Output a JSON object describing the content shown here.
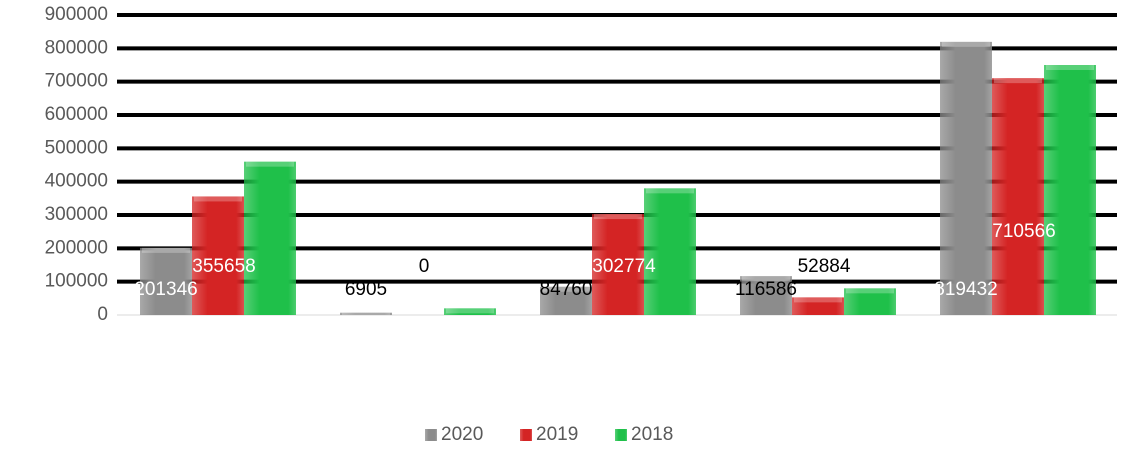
{
  "chart_data": {
    "type": "bar",
    "categories": [
      null,
      null,
      null,
      null,
      null
    ],
    "series": [
      {
        "name": "2020",
        "color": "#8c8c8c",
        "values": [
          201346,
          6905,
          84760,
          116586,
          819432
        ],
        "data_labels": true
      },
      {
        "name": "2019",
        "color": "#d42424",
        "values": [
          355658,
          0,
          302774,
          52884,
          710566
        ],
        "data_labels": true
      },
      {
        "name": "2018",
        "color": "#1fc04a",
        "values": [
          460000,
          20000,
          380000,
          80000,
          750000
        ],
        "data_labels": false
      }
    ],
    "ylim": [
      0,
      900000
    ],
    "yticks": [
      0,
      100000,
      200000,
      300000,
      400000,
      500000,
      600000,
      700000,
      800000,
      900000
    ],
    "grid": true,
    "legend": "bottom"
  }
}
